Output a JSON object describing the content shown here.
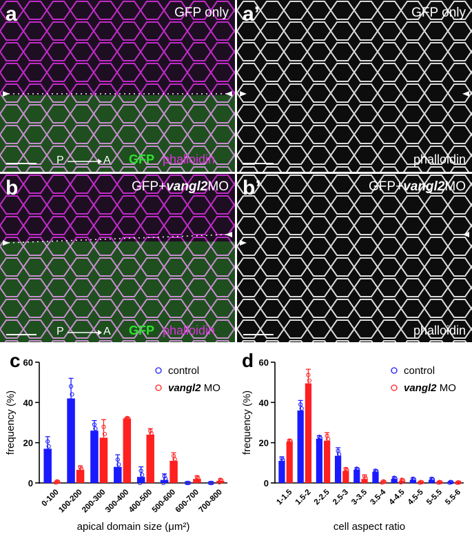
{
  "colors": {
    "control": "#1a1aff",
    "mo": "#ff2020",
    "magenta": "#e030e0",
    "green": "#30e030"
  },
  "panels": {
    "a": {
      "label": "a",
      "title": "GFP only",
      "gfp": "GFP",
      "stain": "phalloidin",
      "axis_p": "P",
      "axis_a": "A"
    },
    "a2": {
      "label": "a’",
      "title": "GFP only",
      "stain": "phalloidin"
    },
    "b": {
      "label": "b",
      "title_prefix": "GFP+",
      "title_gene": "vangl2",
      "title_suffix": "MO",
      "gfp": "GFP",
      "stain": "phalloidin",
      "axis_p": "P",
      "axis_a": "A"
    },
    "b2": {
      "label": "b’",
      "title_prefix": "GFP+",
      "title_gene": "vangl2",
      "title_suffix": "MO",
      "stain": "phalloidin"
    }
  },
  "chart_data": [
    {
      "label": "c",
      "type": "bar",
      "xlabel": "apical domain size (μm²)",
      "ylabel": "frequency (%)",
      "ylim": [
        0,
        60
      ],
      "yticks": [
        0,
        20,
        40,
        60
      ],
      "categories": [
        "0-100",
        "100-200",
        "200-300",
        "300-400",
        "400-500",
        "500-600",
        "600-700",
        "700-800"
      ],
      "series": [
        {
          "name": "control",
          "values": [
            17,
            42,
            26,
            8,
            3,
            1.5,
            0,
            0
          ],
          "errors": [
            6,
            10,
            5,
            6,
            5,
            3,
            0,
            0
          ]
        },
        {
          "name": "vangl2 MO",
          "values": [
            0.5,
            6.5,
            22.5,
            32,
            24,
            11,
            2,
            1
          ],
          "errors": [
            0.5,
            2,
            9,
            0.5,
            3,
            4,
            1.5,
            1
          ]
        }
      ],
      "legend": {
        "control": "control",
        "mo_gene": "vangl2",
        "mo_suffix": " MO"
      }
    },
    {
      "label": "d",
      "type": "bar",
      "xlabel": "cell aspect ratio",
      "ylabel": "frequency (%)",
      "ylim": [
        0,
        60
      ],
      "yticks": [
        0,
        20,
        40,
        60
      ],
      "categories": [
        "1-1.5",
        "1.5-2",
        "2-2.5",
        "2.5-3",
        "3-3.5",
        "3.5-4",
        "4-4.5",
        "4.5-5",
        "5-5.5",
        "5.5-6"
      ],
      "series": [
        {
          "name": "control",
          "values": [
            11,
            36,
            22,
            13.5,
            6.5,
            5.5,
            2,
            1.5,
            1.5,
            0.3
          ],
          "errors": [
            2,
            5,
            1.5,
            4,
            1,
            1,
            1,
            1,
            1,
            0.3
          ]
        },
        {
          "name": "vangl2 MO",
          "values": [
            20.5,
            49.5,
            21,
            6,
            2,
            0.5,
            1,
            0.3,
            0.3,
            0.2
          ],
          "errors": [
            1,
            7,
            4,
            1.5,
            2,
            0.5,
            1,
            0.3,
            0.3,
            0.2
          ]
        }
      ],
      "legend": {
        "control": "control",
        "mo_gene": "vangl2",
        "mo_suffix": " MO"
      }
    }
  ]
}
